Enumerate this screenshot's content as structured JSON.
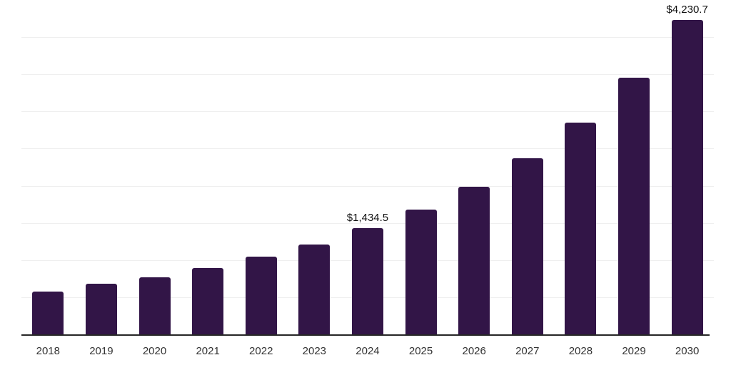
{
  "chart_data": {
    "type": "bar",
    "title": "",
    "xlabel": "",
    "ylabel": "",
    "categories": [
      "2018",
      "2019",
      "2020",
      "2021",
      "2022",
      "2023",
      "2024",
      "2025",
      "2026",
      "2027",
      "2028",
      "2029",
      "2030"
    ],
    "values": [
      585,
      685,
      780,
      900,
      1050,
      1220,
      1434.5,
      1685,
      1990,
      2370,
      2850,
      3455,
      4230.7
    ],
    "point_labels": [
      "",
      "",
      "",
      "",
      "",
      "",
      "$1,434.5",
      "",
      "",
      "",
      "",
      "",
      "$4,230.7"
    ],
    "labeled_points_note": "only 2024 and 2030 carry visible data labels",
    "ylim": [
      0,
      4500
    ],
    "gridline_values": [
      500,
      1000,
      1500,
      2000,
      2500,
      3000,
      3500,
      4000
    ],
    "grid": "horizontal, no y-axis tick labels",
    "legend_position": "none",
    "colors": {
      "bar": "#321547",
      "gridline": "#efefef",
      "axis_line": "#262626",
      "data_label": "#111111",
      "tick_label": "#333333",
      "background": "#ffffff"
    }
  }
}
